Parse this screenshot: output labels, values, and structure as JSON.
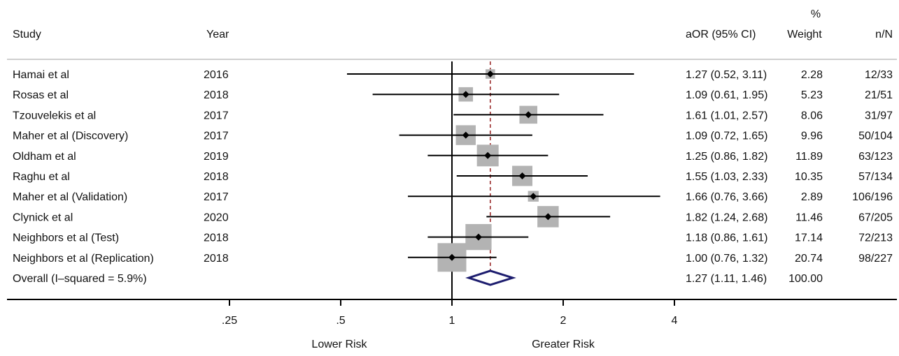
{
  "headers": {
    "study": "Study",
    "year": "Year",
    "estimate": "aOR (95% CI)",
    "weight_top": "%",
    "weight": "Weight",
    "nN": "n/N"
  },
  "chart_data": {
    "type": "forest",
    "x_scale": "log",
    "xlim": [
      0.2,
      4.2
    ],
    "ticks": [
      {
        "value": 0.25,
        "label": ".25"
      },
      {
        "value": 0.5,
        "label": ".5"
      },
      {
        "value": 1,
        "label": "1"
      },
      {
        "value": 2,
        "label": "2"
      },
      {
        "value": 4,
        "label": "4"
      }
    ],
    "direction_labels": {
      "left": "Lower Risk",
      "right": "Greater Risk"
    },
    "null_line": 1,
    "studies": [
      {
        "study": "Hamai et al",
        "year": "2016",
        "or": 1.27,
        "lower": 0.52,
        "upper": 3.11,
        "ci_text": "1.27 (0.52, 3.11)",
        "weight": 2.28,
        "weight_text": "2.28",
        "nN": "12/33"
      },
      {
        "study": "Rosas et al",
        "year": "2018",
        "or": 1.09,
        "lower": 0.61,
        "upper": 1.95,
        "ci_text": "1.09 (0.61, 1.95)",
        "weight": 5.23,
        "weight_text": "5.23",
        "nN": "21/51"
      },
      {
        "study": "Tzouvelekis et al",
        "year": "2017",
        "or": 1.61,
        "lower": 1.01,
        "upper": 2.57,
        "ci_text": "1.61 (1.01, 2.57)",
        "weight": 8.06,
        "weight_text": "8.06",
        "nN": "31/97"
      },
      {
        "study": "Maher et al (Discovery)",
        "year": "2017",
        "or": 1.09,
        "lower": 0.72,
        "upper": 1.65,
        "ci_text": "1.09 (0.72, 1.65)",
        "weight": 9.96,
        "weight_text": "9.96",
        "nN": "50/104"
      },
      {
        "study": "Oldham et al",
        "year": "2019",
        "or": 1.25,
        "lower": 0.86,
        "upper": 1.82,
        "ci_text": "1.25 (0.86, 1.82)",
        "weight": 11.89,
        "weight_text": "11.89",
        "nN": "63/123"
      },
      {
        "study": "Raghu et al",
        "year": "2018",
        "or": 1.55,
        "lower": 1.03,
        "upper": 2.33,
        "ci_text": "1.55 (1.03, 2.33)",
        "weight": 10.35,
        "weight_text": "10.35",
        "nN": "57/134"
      },
      {
        "study": "Maher et al (Validation)",
        "year": "2017",
        "or": 1.66,
        "lower": 0.76,
        "upper": 3.66,
        "ci_text": "1.66 (0.76, 3.66)",
        "weight": 2.89,
        "weight_text": "2.89",
        "nN": "106/196"
      },
      {
        "study": "Clynick et al",
        "year": "2020",
        "or": 1.82,
        "lower": 1.24,
        "upper": 2.68,
        "ci_text": "1.82 (1.24, 2.68)",
        "weight": 11.46,
        "weight_text": "11.46",
        "nN": "67/205"
      },
      {
        "study": "Neighbors et al (Test)",
        "year": "2018",
        "or": 1.18,
        "lower": 0.86,
        "upper": 1.61,
        "ci_text": "1.18 (0.86, 1.61)",
        "weight": 17.14,
        "weight_text": "17.14",
        "nN": "72/213"
      },
      {
        "study": "Neighbors et al (Replication)",
        "year": "2018",
        "or": 1.0,
        "lower": 0.76,
        "upper": 1.32,
        "ci_text": "1.00 (0.76, 1.32)",
        "weight": 20.74,
        "weight_text": "20.74",
        "nN": "98/227"
      }
    ],
    "overall": {
      "label": "Overall (I–squared = 5.9%)",
      "or": 1.27,
      "lower": 1.11,
      "upper": 1.46,
      "ci_text": "1.27 (1.11, 1.46)",
      "weight_text": "100.00"
    },
    "colors": {
      "ci_line": "#000000",
      "weight_box": "#b3b3b3",
      "point": "#000000",
      "null_line": "#000000",
      "overall_line": "#9b2d2d",
      "diamond": "#1c1c6e",
      "header_rule": "#cfcfcf",
      "axis": "#000000"
    }
  }
}
